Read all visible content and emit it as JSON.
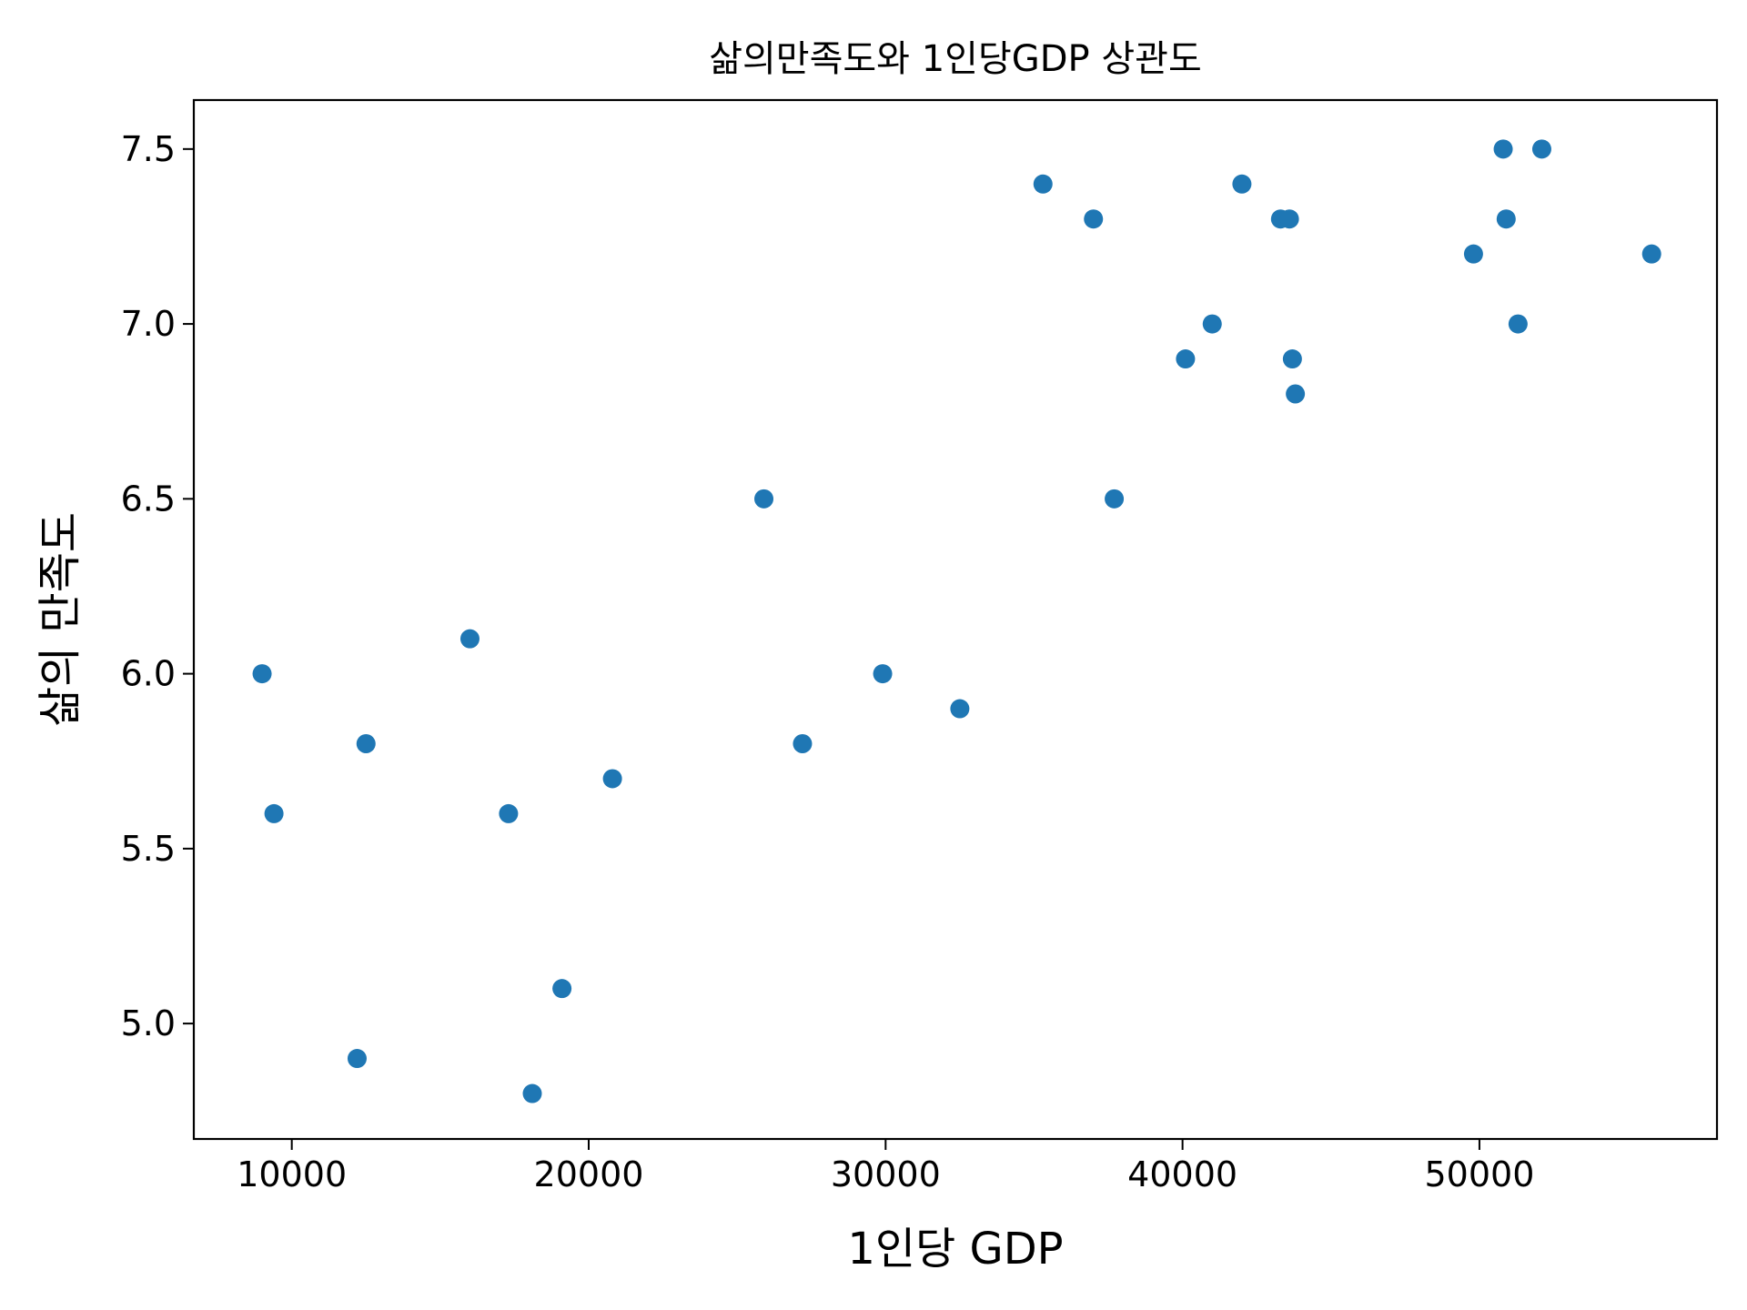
{
  "chart_data": {
    "type": "scatter",
    "title": "삶의만족도와 1인당GDP 상관도",
    "xlabel": "1인당 GDP",
    "ylabel": "삶의 만족도",
    "xlim": [
      6700,
      58000
    ],
    "ylim": [
      4.67,
      7.64
    ],
    "xticks": [
      10000,
      20000,
      30000,
      40000,
      50000
    ],
    "xtick_labels": [
      "10000",
      "20000",
      "30000",
      "40000",
      "50000"
    ],
    "yticks": [
      5.0,
      5.5,
      6.0,
      6.5,
      7.0,
      7.5
    ],
    "ytick_labels": [
      "5.0",
      "5.5",
      "6.0",
      "6.5",
      "7.0",
      "7.5"
    ],
    "grid": false,
    "marker_color": "#1f77b4",
    "points": [
      {
        "x": 9000,
        "y": 6.0
      },
      {
        "x": 9400,
        "y": 5.6
      },
      {
        "x": 12200,
        "y": 4.9
      },
      {
        "x": 12500,
        "y": 5.8
      },
      {
        "x": 16000,
        "y": 6.1
      },
      {
        "x": 17300,
        "y": 5.6
      },
      {
        "x": 18100,
        "y": 4.8
      },
      {
        "x": 19100,
        "y": 5.1
      },
      {
        "x": 20800,
        "y": 5.7
      },
      {
        "x": 25900,
        "y": 6.5
      },
      {
        "x": 27200,
        "y": 5.8
      },
      {
        "x": 29900,
        "y": 6.0
      },
      {
        "x": 32500,
        "y": 5.9
      },
      {
        "x": 35300,
        "y": 7.4
      },
      {
        "x": 37000,
        "y": 7.3
      },
      {
        "x": 37700,
        "y": 6.5
      },
      {
        "x": 40100,
        "y": 6.9
      },
      {
        "x": 41000,
        "y": 7.0
      },
      {
        "x": 42000,
        "y": 7.4
      },
      {
        "x": 43300,
        "y": 7.3
      },
      {
        "x": 43600,
        "y": 7.3
      },
      {
        "x": 43700,
        "y": 6.9
      },
      {
        "x": 43800,
        "y": 6.8
      },
      {
        "x": 49800,
        "y": 7.2
      },
      {
        "x": 50800,
        "y": 7.5
      },
      {
        "x": 50900,
        "y": 7.3
      },
      {
        "x": 51300,
        "y": 7.0
      },
      {
        "x": 52100,
        "y": 7.5
      },
      {
        "x": 55800,
        "y": 7.2
      }
    ]
  }
}
